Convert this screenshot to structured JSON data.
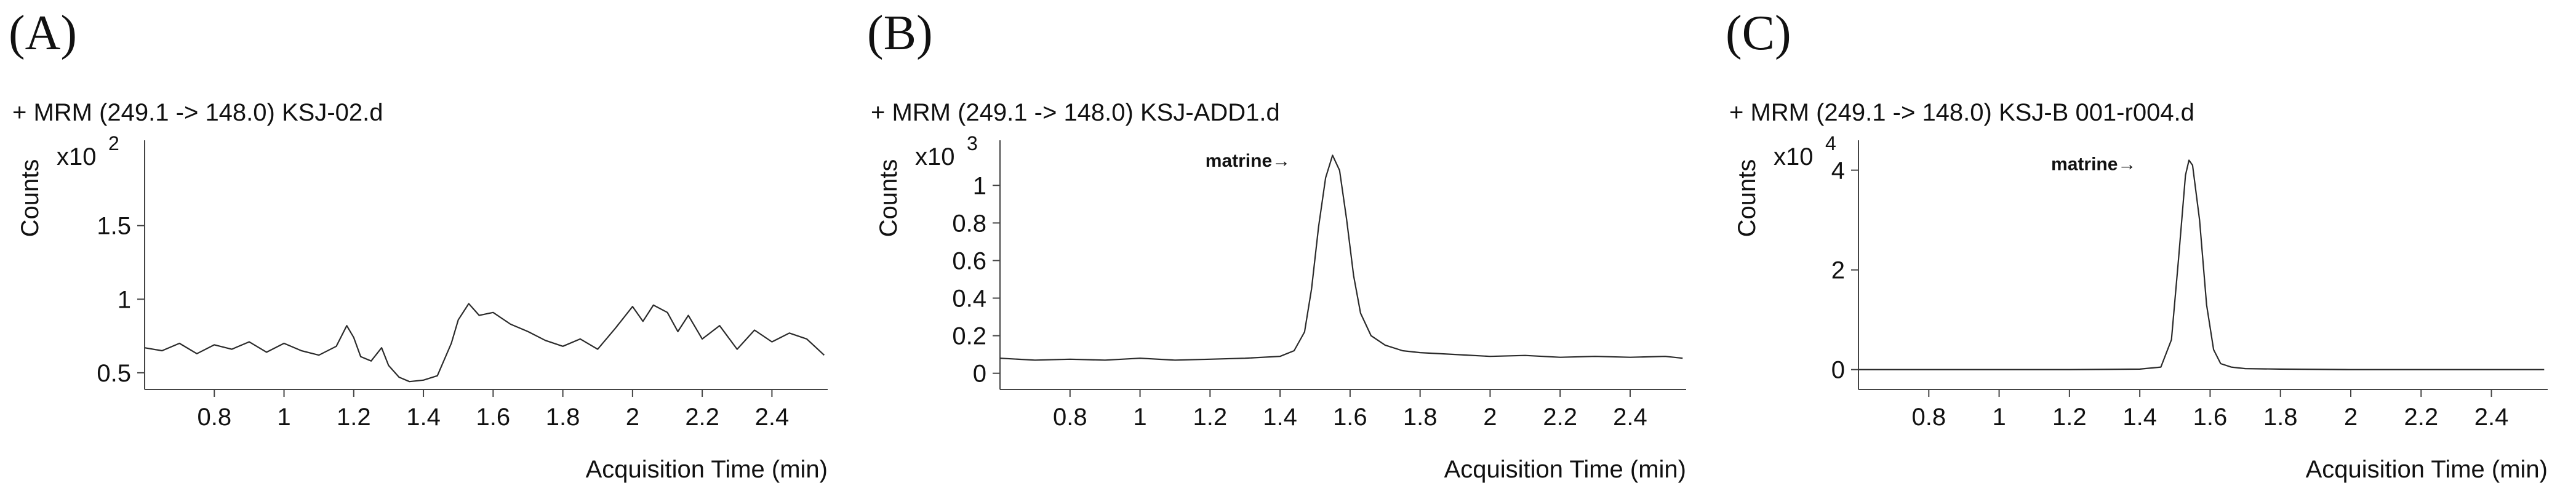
{
  "colors": {
    "trace": "#2a2a2a",
    "axis": "#444444",
    "text": "#111111"
  },
  "chart_data": [
    {
      "type": "line",
      "panel_label": "(A)",
      "title": "+ MRM (249.1 -> 148.0) KSJ-02.d",
      "ylabel": "Counts",
      "xlabel": "Acquisition Time (min)",
      "scale": "x10",
      "scale_exp": "2",
      "xlim": [
        0.6,
        2.56
      ],
      "ylim": [
        0.42,
        2.08
      ],
      "x_ticks": [
        0.8,
        1,
        1.2,
        1.4,
        1.6,
        1.8,
        2,
        2.2,
        2.4
      ],
      "x_tick_labels": [
        "0.8",
        "1",
        "1.2",
        "1.4",
        "1.6",
        "1.8",
        "2",
        "2.2",
        "2.4"
      ],
      "y_ticks": [
        0.5,
        1,
        1.5
      ],
      "y_tick_labels": [
        "0.5",
        "1",
        "1.5"
      ],
      "annotation": "",
      "series": [
        {
          "x": [
            0.6,
            0.65,
            0.7,
            0.75,
            0.8,
            0.85,
            0.9,
            0.95,
            1.0,
            1.05,
            1.1,
            1.15,
            1.18,
            1.2,
            1.22,
            1.25,
            1.28,
            1.3,
            1.33,
            1.36,
            1.4,
            1.44,
            1.48,
            1.5,
            1.53,
            1.56,
            1.6,
            1.65,
            1.7,
            1.75,
            1.8,
            1.85,
            1.9,
            1.95,
            2.0,
            2.03,
            2.06,
            2.1,
            2.13,
            2.16,
            2.2,
            2.25,
            2.3,
            2.35,
            2.4,
            2.45,
            2.5,
            2.55
          ],
          "y": [
            0.67,
            0.65,
            0.7,
            0.63,
            0.69,
            0.66,
            0.71,
            0.64,
            0.7,
            0.65,
            0.62,
            0.68,
            0.82,
            0.74,
            0.61,
            0.58,
            0.67,
            0.55,
            0.47,
            0.44,
            0.45,
            0.48,
            0.7,
            0.86,
            0.97,
            0.89,
            0.91,
            0.83,
            0.78,
            0.72,
            0.68,
            0.73,
            0.66,
            0.8,
            0.95,
            0.85,
            0.96,
            0.91,
            0.78,
            0.89,
            0.73,
            0.82,
            0.66,
            0.79,
            0.71,
            0.77,
            0.73,
            0.62
          ]
        }
      ]
    },
    {
      "type": "line",
      "panel_label": "(B)",
      "title": "+ MRM (249.1 -> 148.0) KSJ-ADD1.d",
      "ylabel": "Counts",
      "xlabel": "Acquisition Time (min)",
      "scale": "x10",
      "scale_exp": "3",
      "xlim": [
        0.6,
        2.56
      ],
      "ylim": [
        -0.06,
        1.24
      ],
      "x_ticks": [
        0.8,
        1,
        1.2,
        1.4,
        1.6,
        1.8,
        2,
        2.2,
        2.4
      ],
      "x_tick_labels": [
        "0.8",
        "1",
        "1.2",
        "1.4",
        "1.6",
        "1.8",
        "2",
        "2.2",
        "2.4"
      ],
      "y_ticks": [
        0,
        0.2,
        0.4,
        0.6,
        0.8,
        1
      ],
      "y_tick_labels": [
        "0",
        "0.2",
        "0.4",
        "0.6",
        "0.8",
        "1"
      ],
      "annotation": "matrine→",
      "annotation_x": 1.43,
      "annotation_y": 1.1,
      "series": [
        {
          "x": [
            0.6,
            0.7,
            0.8,
            0.9,
            1.0,
            1.1,
            1.2,
            1.3,
            1.4,
            1.44,
            1.47,
            1.49,
            1.51,
            1.53,
            1.55,
            1.57,
            1.59,
            1.61,
            1.63,
            1.66,
            1.7,
            1.75,
            1.8,
            1.9,
            2.0,
            2.1,
            2.2,
            2.3,
            2.4,
            2.5,
            2.55
          ],
          "y": [
            0.08,
            0.07,
            0.075,
            0.07,
            0.08,
            0.07,
            0.075,
            0.08,
            0.09,
            0.12,
            0.22,
            0.45,
            0.78,
            1.04,
            1.16,
            1.08,
            0.82,
            0.52,
            0.32,
            0.2,
            0.15,
            0.12,
            0.11,
            0.1,
            0.09,
            0.095,
            0.085,
            0.09,
            0.085,
            0.09,
            0.08
          ]
        }
      ]
    },
    {
      "type": "line",
      "panel_label": "(C)",
      "title": "+ MRM (249.1 -> 148.0) KSJ-B 001-r004.d",
      "ylabel": "Counts",
      "xlabel": "Acquisition Time (min)",
      "scale": "x10",
      "scale_exp": "4",
      "xlim": [
        0.6,
        2.56
      ],
      "ylim": [
        -0.3,
        4.6
      ],
      "x_ticks": [
        0.8,
        1,
        1.2,
        1.4,
        1.6,
        1.8,
        2,
        2.2,
        2.4
      ],
      "x_tick_labels": [
        "0.8",
        "1",
        "1.2",
        "1.4",
        "1.6",
        "1.8",
        "2",
        "2.2",
        "2.4"
      ],
      "y_ticks": [
        0,
        2,
        4
      ],
      "y_tick_labels": [
        "0",
        "2",
        "4"
      ],
      "annotation": "matrine→",
      "annotation_x": 1.39,
      "annotation_y": 4.0,
      "series": [
        {
          "x": [
            0.6,
            0.8,
            1.0,
            1.2,
            1.4,
            1.46,
            1.49,
            1.51,
            1.53,
            1.54,
            1.55,
            1.57,
            1.59,
            1.61,
            1.63,
            1.66,
            1.7,
            1.8,
            2.0,
            2.2,
            2.4,
            2.55
          ],
          "y": [
            0.0,
            0.0,
            0.0,
            0.0,
            0.01,
            0.05,
            0.6,
            2.2,
            3.9,
            4.2,
            4.1,
            3.0,
            1.3,
            0.4,
            0.12,
            0.05,
            0.02,
            0.01,
            0.0,
            0.0,
            0.0,
            0.0
          ]
        }
      ]
    }
  ]
}
